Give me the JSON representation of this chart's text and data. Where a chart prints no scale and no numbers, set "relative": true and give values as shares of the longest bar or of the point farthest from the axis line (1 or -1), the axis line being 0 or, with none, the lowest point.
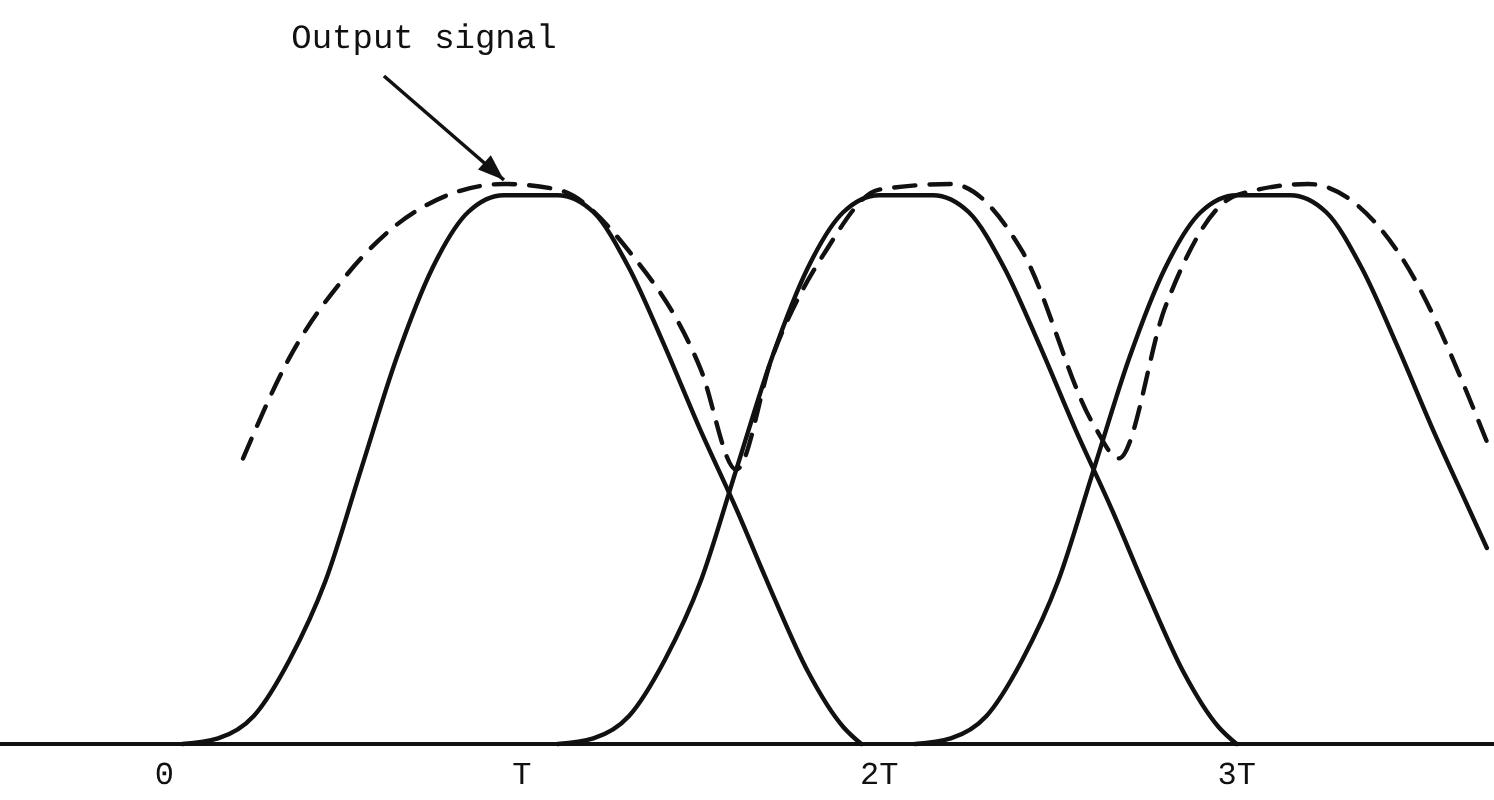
{
  "chart_data": {
    "type": "line",
    "relative": true,
    "x": [
      0.05,
      0.15,
      0.25,
      0.35,
      0.45,
      0.55,
      0.65,
      0.75,
      0.85,
      0.95,
      1.1,
      1.2,
      1.3,
      1.4,
      1.5,
      1.6,
      1.7,
      1.8,
      1.9,
      1.95
    ],
    "xlim": [
      -0.46,
      3.72
    ],
    "xticks": [
      {
        "value": 0,
        "label": "0"
      },
      {
        "value": 1,
        "label": "T"
      },
      {
        "value": 2,
        "label": "2T"
      },
      {
        "value": 3,
        "label": "3T"
      }
    ],
    "series": [
      {
        "color": "#111111",
        "line_style": "solid",
        "values": [
          0,
          0.01,
          0.05,
          0.15,
          0.29,
          0.49,
          0.69,
          0.85,
          0.95,
          0.98,
          0.98,
          0.95,
          0.85,
          0.71,
          0.56,
          0.42,
          0.27,
          0.13,
          0.03,
          0
        ]
      },
      {
        "color": "#111111",
        "line_style": "solid",
        "x": [
          1.1,
          1.2,
          1.3,
          1.4,
          1.5,
          1.6,
          1.7,
          1.8,
          1.9,
          2.0,
          2.15,
          2.25,
          2.35,
          2.45,
          2.55,
          2.65,
          2.75,
          2.85,
          2.95,
          3.0
        ],
        "values": [
          0,
          0.01,
          0.05,
          0.15,
          0.29,
          0.49,
          0.69,
          0.85,
          0.95,
          0.98,
          0.98,
          0.95,
          0.85,
          0.71,
          0.56,
          0.42,
          0.27,
          0.13,
          0.03,
          0
        ]
      },
      {
        "color": "#111111",
        "line_style": "solid",
        "x": [
          2.1,
          2.2,
          2.3,
          2.4,
          2.5,
          2.6,
          2.7,
          2.8,
          2.9,
          3.0,
          3.15,
          3.25,
          3.35,
          3.45,
          3.55,
          3.65,
          3.7
        ],
        "values": [
          0,
          0.01,
          0.05,
          0.15,
          0.29,
          0.49,
          0.69,
          0.85,
          0.95,
          0.98,
          0.98,
          0.95,
          0.85,
          0.71,
          0.56,
          0.42,
          0.35
        ]
      },
      {
        "color": "#111111",
        "line_style": "dashed",
        "x": [
          0.22,
          0.35,
          0.5,
          0.7,
          0.95,
          1.1,
          1.3,
          1.5,
          1.6,
          1.7,
          1.85,
          2.0,
          2.2,
          2.4,
          2.6,
          2.67,
          2.8,
          3.0,
          3.2,
          3.45,
          3.7
        ],
        "values": [
          0.51,
          0.69,
          0.83,
          0.95,
          1,
          0.99,
          0.88,
          0.67,
          0.49,
          0.69,
          0.88,
          0.99,
          1,
          0.88,
          0.57,
          0.51,
          0.78,
          0.98,
          1,
          0.88,
          0.54
        ]
      }
    ],
    "annotations": [
      {
        "text": "Output signal",
        "x": 0.95,
        "y": 1
      }
    ]
  }
}
